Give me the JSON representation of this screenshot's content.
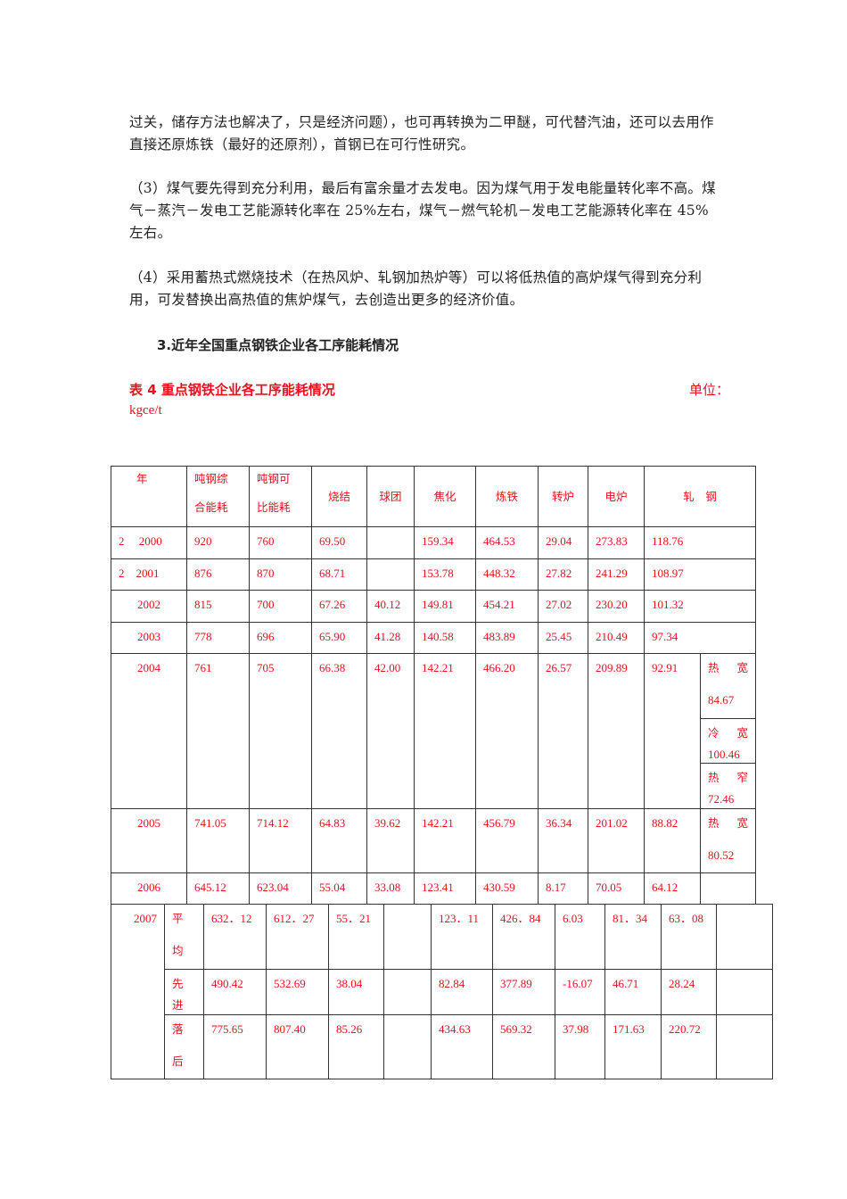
{
  "paragraphs": [
    "过关，储存方法也解决了，只是经济问题），也可再转换为二甲醚，可代替汽油，还可以去用作直接还原炼铁（最好的还原剂），首钢已在可行性研究。",
    "（3）煤气要先得到充分利用，最后有富余量才去发电。因为煤气用于发电能量转化率不高。煤气－蒸汽－发电工艺能源转化率在 25%左右，煤气－燃气轮机－发电工艺能源转化率在 45%左右。",
    "（4）采用蓄热式燃烧技术（在热风炉、轧钢加热炉等）可以将低热值的高炉煤气得到充分利用，可发替换出高热值的焦炉煤气，去创造出更多的经济价值。"
  ],
  "section_heading": "3.近年全国重点钢铁企业各工序能耗情况",
  "table_caption": "表 4   重点钢铁企业各工序能耗情况",
  "unit_label": "单位：",
  "unit_value": "kgce/t",
  "table": {
    "headers": [
      "年",
      "吨钢综合能耗",
      "吨钢可比能耗",
      "烧结",
      "球团",
      "焦化",
      "炼铁",
      "转炉",
      "电炉",
      "轧　钢"
    ],
    "header_lines": {
      "h1a": "吨钢综",
      "h1b": "合能耗",
      "h2a": "吨钢可",
      "h2b": "比能耗"
    },
    "rows": [
      {
        "year": "2　 2000",
        "values": [
          "920",
          "760",
          "69.50",
          "",
          "159.34",
          "464.53",
          "29.04",
          "273.83",
          "118.76"
        ]
      },
      {
        "year": "2　2001",
        "values": [
          "876",
          "870",
          "68.71",
          "",
          "153.78",
          "448.32",
          "27.82",
          "241.29",
          "108.97"
        ]
      },
      {
        "year": "2002",
        "values": [
          "815",
          "700",
          "67.26",
          "40.12",
          "149.81",
          "454.21",
          "27.02",
          "230.20",
          "101.32"
        ]
      },
      {
        "year": "2003",
        "values": [
          "778",
          "696",
          "65.90",
          "41.28",
          "140.58",
          "483.89",
          "25.45",
          "210.49",
          "97.34"
        ]
      },
      {
        "year": "2004",
        "values": [
          "761",
          "705",
          "66.38",
          "42.00",
          "142.21",
          "466.20",
          "26.57",
          "209.89",
          "92.91"
        ],
        "sub": [
          {
            "a": "热",
            "b": "宽",
            "v": "84.67"
          },
          {
            "a": "冷",
            "b": "宽",
            "v": "100.46"
          },
          {
            "a": "热",
            "b": "窄",
            "v": "72.46"
          }
        ]
      },
      {
        "year": "2005",
        "values": [
          "741.05",
          "714.12",
          "64.83",
          "39.62",
          "142.21",
          "456.79",
          "36.34",
          "201.02",
          "88.82"
        ],
        "sub": [
          {
            "a": "热",
            "b": "宽",
            "v": "80.52"
          }
        ]
      },
      {
        "year": "2006",
        "values": [
          "645.12",
          "623.04",
          "55.04",
          "33.08",
          "123.41",
          "430.59",
          "8.17",
          "70.05",
          "64.12"
        ],
        "sub": []
      }
    ],
    "year_2007": "2007",
    "rows_2007": [
      {
        "label_a": "平",
        "label_b": "均",
        "values": [
          "632．12",
          "612．27",
          "55．21",
          "",
          "123．11",
          "426．84",
          "6.03",
          "81．34",
          "63．08",
          "",
          ""
        ]
      },
      {
        "label_a": "先",
        "label_b": "进",
        "values": [
          "490.42",
          "532.69",
          "38.04",
          "",
          "82.84",
          "377.89",
          "-16.07",
          "46.71",
          "28.24",
          "",
          ""
        ]
      },
      {
        "label_a": "落",
        "label_b": "后",
        "values": [
          "775.65",
          "807.40",
          "85.26",
          "",
          "434.63",
          "569.32",
          "37.98",
          "171.63",
          "220.72",
          "",
          ""
        ]
      }
    ]
  },
  "colors": {
    "table_text": "#e8101e",
    "body_text": "#222222",
    "border": "#333333"
  }
}
